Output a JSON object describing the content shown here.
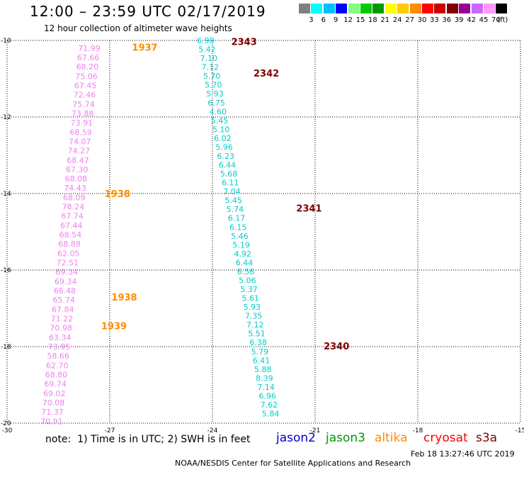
{
  "header": {
    "title": "12:00 – 23:59 UTC 02/17/2019",
    "subtitle": "12 hour collection of altimeter wave heights"
  },
  "colorbar": {
    "unit": "(ft)",
    "levels": [
      {
        "label": "3",
        "color": "#808080"
      },
      {
        "label": "6",
        "color": "#00ffff"
      },
      {
        "label": "9",
        "color": "#00bfff"
      },
      {
        "label": "12",
        "color": "#0000ff"
      },
      {
        "label": "15",
        "color": "#80ff80"
      },
      {
        "label": "18",
        "color": "#00cc00"
      },
      {
        "label": "21",
        "color": "#009900"
      },
      {
        "label": "24",
        "color": "#ffff00"
      },
      {
        "label": "27",
        "color": "#ffcc00"
      },
      {
        "label": "30",
        "color": "#ff8c00"
      },
      {
        "label": "33",
        "color": "#ff0000"
      },
      {
        "label": "36",
        "color": "#cc0000"
      },
      {
        "label": "39",
        "color": "#800000"
      },
      {
        "label": "42",
        "color": "#990099"
      },
      {
        "label": "45",
        "color": "#cc66ff"
      },
      {
        "label": "70",
        "color": "#ff99ff"
      },
      {
        "label": "",
        "color": "#000000"
      }
    ]
  },
  "axes": {
    "x_ticks": [
      "-30",
      "-27",
      "-24",
      "-21",
      "-18",
      "-15"
    ],
    "y_ticks": [
      "-10",
      "-12",
      "-14",
      "-16",
      "-18",
      "-20"
    ],
    "lon_range": [
      -30,
      -15
    ],
    "lat_range": [
      -20,
      -10
    ]
  },
  "colors": {
    "pink_track": "#ee82ee",
    "cyan_track": "#00cccc",
    "orange_label": "#ff8c00",
    "darkred_label": "#800000",
    "grid": "#000000"
  },
  "tracks": [
    {
      "color_key": "pink_track",
      "lon_top": -27.6,
      "lat_top": -10.2,
      "lon_bottom": -28.7,
      "lat_bottom": -19.95,
      "values": [
        "71.99",
        "67.66",
        "68.20",
        "75.06",
        "67.45",
        "72.46",
        "75.74",
        "73.88",
        "73.91",
        "68.59",
        "74.07",
        "74.27",
        "68.47",
        "67.30",
        "68.08",
        "74.43",
        "68.09",
        "78.24",
        "67.74",
        "67.44",
        "68.54",
        "68.88",
        "62.05",
        "72.51",
        "69.34",
        "69.34",
        "66.48",
        "65.74",
        "67.84",
        "71.22",
        "70.98",
        "63.34",
        "73.95",
        "58.66",
        "62.70",
        "68.80",
        "69.74",
        "69.02",
        "70.08",
        "71.37",
        "70.91"
      ]
    },
    {
      "color_key": "cyan_track",
      "lon_top": -24.2,
      "lat_top": -10.0,
      "lon_bottom": -22.3,
      "lat_bottom": -19.75,
      "values": [
        "6.98",
        "5.42",
        "7.10",
        "7.12",
        "5.70",
        "5.70",
        "5.93",
        "6.75",
        "4.60",
        "5.45",
        "5.10",
        "6.02",
        "5.96",
        "6.23",
        "6.44",
        "5.68",
        "6.11",
        "7.04",
        "5.45",
        "5.74",
        "6.17",
        "6.15",
        "5.46",
        "5.19",
        "4.92",
        "6.44",
        "6.56",
        "5.06",
        "5.37",
        "5.61",
        "5.93",
        "7.35",
        "7.12",
        "5.51",
        "6.38",
        "5.79",
        "6.41",
        "5.88",
        "8.39",
        "7.14",
        "6.96",
        "7.62",
        "5.84"
      ]
    }
  ],
  "time_labels": [
    {
      "text": "1937",
      "lon": -26.35,
      "lat": -10.18,
      "color_key": "orange_label"
    },
    {
      "text": "1938",
      "lon": -27.15,
      "lat": -14.0,
      "color_key": "orange_label"
    },
    {
      "text": "1938",
      "lon": -26.95,
      "lat": -16.7,
      "color_key": "orange_label"
    },
    {
      "text": "1939",
      "lon": -27.25,
      "lat": -17.45,
      "color_key": "orange_label"
    },
    {
      "text": "2343",
      "lon": -23.45,
      "lat": -10.03,
      "color_key": "darkred_label"
    },
    {
      "text": "2342",
      "lon": -22.8,
      "lat": -10.85,
      "color_key": "darkred_label"
    },
    {
      "text": "2341",
      "lon": -21.55,
      "lat": -14.38,
      "color_key": "darkred_label"
    },
    {
      "text": "2340",
      "lon": -20.75,
      "lat": -17.98,
      "color_key": "darkred_label"
    }
  ],
  "footer": {
    "note": "note:  1) Time is in UTC; 2) SWH is in feet",
    "satellites": [
      {
        "name": "jason2",
        "color": "#0000cc"
      },
      {
        "name": "jason3",
        "color": "#009900"
      },
      {
        "name": "altika",
        "color": "#ff8c00"
      },
      {
        "name": "cryosat",
        "color": "#ff0000"
      },
      {
        "name": "s3a",
        "color": "#800000"
      }
    ],
    "credit": "NOAA/NESDIS Center for Satellite Applications and Research",
    "timestamp": "Feb 18 13:27:46 UTC 2019"
  }
}
